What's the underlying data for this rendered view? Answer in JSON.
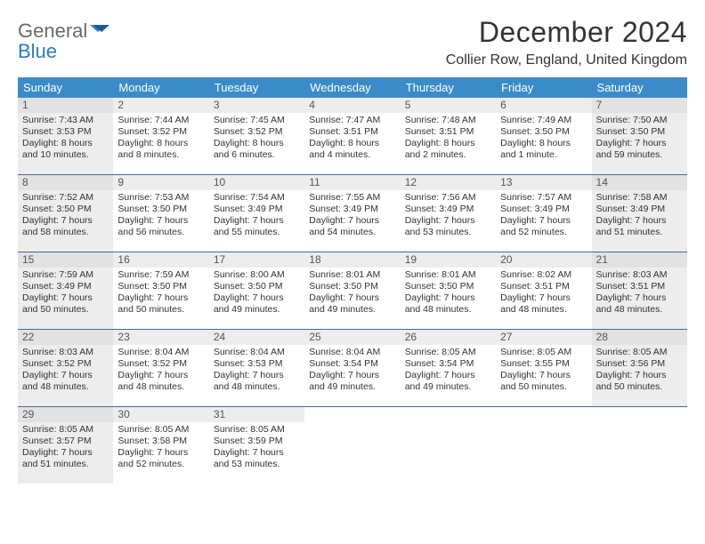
{
  "logo": {
    "general": "General",
    "blue": "Blue"
  },
  "title": "December 2024",
  "location": "Collier Row, England, United Kingdom",
  "colors": {
    "header_bg": "#3b8bc8",
    "week_border": "#3b6d9a",
    "shaded_cell": "#ededed",
    "daynum_bg": "#ededed"
  },
  "dayHeaders": [
    "Sunday",
    "Monday",
    "Tuesday",
    "Wednesday",
    "Thursday",
    "Friday",
    "Saturday"
  ],
  "weeks": [
    [
      {
        "num": "1",
        "shaded": true,
        "sunrise": "Sunrise: 7:43 AM",
        "sunset": "Sunset: 3:53 PM",
        "day1": "Daylight: 8 hours",
        "day2": "and 10 minutes."
      },
      {
        "num": "2",
        "shaded": false,
        "sunrise": "Sunrise: 7:44 AM",
        "sunset": "Sunset: 3:52 PM",
        "day1": "Daylight: 8 hours",
        "day2": "and 8 minutes."
      },
      {
        "num": "3",
        "shaded": false,
        "sunrise": "Sunrise: 7:45 AM",
        "sunset": "Sunset: 3:52 PM",
        "day1": "Daylight: 8 hours",
        "day2": "and 6 minutes."
      },
      {
        "num": "4",
        "shaded": false,
        "sunrise": "Sunrise: 7:47 AM",
        "sunset": "Sunset: 3:51 PM",
        "day1": "Daylight: 8 hours",
        "day2": "and 4 minutes."
      },
      {
        "num": "5",
        "shaded": false,
        "sunrise": "Sunrise: 7:48 AM",
        "sunset": "Sunset: 3:51 PM",
        "day1": "Daylight: 8 hours",
        "day2": "and 2 minutes."
      },
      {
        "num": "6",
        "shaded": false,
        "sunrise": "Sunrise: 7:49 AM",
        "sunset": "Sunset: 3:50 PM",
        "day1": "Daylight: 8 hours",
        "day2": "and 1 minute."
      },
      {
        "num": "7",
        "shaded": true,
        "sunrise": "Sunrise: 7:50 AM",
        "sunset": "Sunset: 3:50 PM",
        "day1": "Daylight: 7 hours",
        "day2": "and 59 minutes."
      }
    ],
    [
      {
        "num": "8",
        "shaded": true,
        "sunrise": "Sunrise: 7:52 AM",
        "sunset": "Sunset: 3:50 PM",
        "day1": "Daylight: 7 hours",
        "day2": "and 58 minutes."
      },
      {
        "num": "9",
        "shaded": false,
        "sunrise": "Sunrise: 7:53 AM",
        "sunset": "Sunset: 3:50 PM",
        "day1": "Daylight: 7 hours",
        "day2": "and 56 minutes."
      },
      {
        "num": "10",
        "shaded": false,
        "sunrise": "Sunrise: 7:54 AM",
        "sunset": "Sunset: 3:49 PM",
        "day1": "Daylight: 7 hours",
        "day2": "and 55 minutes."
      },
      {
        "num": "11",
        "shaded": false,
        "sunrise": "Sunrise: 7:55 AM",
        "sunset": "Sunset: 3:49 PM",
        "day1": "Daylight: 7 hours",
        "day2": "and 54 minutes."
      },
      {
        "num": "12",
        "shaded": false,
        "sunrise": "Sunrise: 7:56 AM",
        "sunset": "Sunset: 3:49 PM",
        "day1": "Daylight: 7 hours",
        "day2": "and 53 minutes."
      },
      {
        "num": "13",
        "shaded": false,
        "sunrise": "Sunrise: 7:57 AM",
        "sunset": "Sunset: 3:49 PM",
        "day1": "Daylight: 7 hours",
        "day2": "and 52 minutes."
      },
      {
        "num": "14",
        "shaded": true,
        "sunrise": "Sunrise: 7:58 AM",
        "sunset": "Sunset: 3:49 PM",
        "day1": "Daylight: 7 hours",
        "day2": "and 51 minutes."
      }
    ],
    [
      {
        "num": "15",
        "shaded": true,
        "sunrise": "Sunrise: 7:59 AM",
        "sunset": "Sunset: 3:49 PM",
        "day1": "Daylight: 7 hours",
        "day2": "and 50 minutes."
      },
      {
        "num": "16",
        "shaded": false,
        "sunrise": "Sunrise: 7:59 AM",
        "sunset": "Sunset: 3:50 PM",
        "day1": "Daylight: 7 hours",
        "day2": "and 50 minutes."
      },
      {
        "num": "17",
        "shaded": false,
        "sunrise": "Sunrise: 8:00 AM",
        "sunset": "Sunset: 3:50 PM",
        "day1": "Daylight: 7 hours",
        "day2": "and 49 minutes."
      },
      {
        "num": "18",
        "shaded": false,
        "sunrise": "Sunrise: 8:01 AM",
        "sunset": "Sunset: 3:50 PM",
        "day1": "Daylight: 7 hours",
        "day2": "and 49 minutes."
      },
      {
        "num": "19",
        "shaded": false,
        "sunrise": "Sunrise: 8:01 AM",
        "sunset": "Sunset: 3:50 PM",
        "day1": "Daylight: 7 hours",
        "day2": "and 48 minutes."
      },
      {
        "num": "20",
        "shaded": false,
        "sunrise": "Sunrise: 8:02 AM",
        "sunset": "Sunset: 3:51 PM",
        "day1": "Daylight: 7 hours",
        "day2": "and 48 minutes."
      },
      {
        "num": "21",
        "shaded": true,
        "sunrise": "Sunrise: 8:03 AM",
        "sunset": "Sunset: 3:51 PM",
        "day1": "Daylight: 7 hours",
        "day2": "and 48 minutes."
      }
    ],
    [
      {
        "num": "22",
        "shaded": true,
        "sunrise": "Sunrise: 8:03 AM",
        "sunset": "Sunset: 3:52 PM",
        "day1": "Daylight: 7 hours",
        "day2": "and 48 minutes."
      },
      {
        "num": "23",
        "shaded": false,
        "sunrise": "Sunrise: 8:04 AM",
        "sunset": "Sunset: 3:52 PM",
        "day1": "Daylight: 7 hours",
        "day2": "and 48 minutes."
      },
      {
        "num": "24",
        "shaded": false,
        "sunrise": "Sunrise: 8:04 AM",
        "sunset": "Sunset: 3:53 PM",
        "day1": "Daylight: 7 hours",
        "day2": "and 48 minutes."
      },
      {
        "num": "25",
        "shaded": false,
        "sunrise": "Sunrise: 8:04 AM",
        "sunset": "Sunset: 3:54 PM",
        "day1": "Daylight: 7 hours",
        "day2": "and 49 minutes."
      },
      {
        "num": "26",
        "shaded": false,
        "sunrise": "Sunrise: 8:05 AM",
        "sunset": "Sunset: 3:54 PM",
        "day1": "Daylight: 7 hours",
        "day2": "and 49 minutes."
      },
      {
        "num": "27",
        "shaded": false,
        "sunrise": "Sunrise: 8:05 AM",
        "sunset": "Sunset: 3:55 PM",
        "day1": "Daylight: 7 hours",
        "day2": "and 50 minutes."
      },
      {
        "num": "28",
        "shaded": true,
        "sunrise": "Sunrise: 8:05 AM",
        "sunset": "Sunset: 3:56 PM",
        "day1": "Daylight: 7 hours",
        "day2": "and 50 minutes."
      }
    ],
    [
      {
        "num": "29",
        "shaded": true,
        "sunrise": "Sunrise: 8:05 AM",
        "sunset": "Sunset: 3:57 PM",
        "day1": "Daylight: 7 hours",
        "day2": "and 51 minutes."
      },
      {
        "num": "30",
        "shaded": false,
        "sunrise": "Sunrise: 8:05 AM",
        "sunset": "Sunset: 3:58 PM",
        "day1": "Daylight: 7 hours",
        "day2": "and 52 minutes."
      },
      {
        "num": "31",
        "shaded": false,
        "sunrise": "Sunrise: 8:05 AM",
        "sunset": "Sunset: 3:59 PM",
        "day1": "Daylight: 7 hours",
        "day2": "and 53 minutes."
      },
      {
        "empty": true
      },
      {
        "empty": true
      },
      {
        "empty": true
      },
      {
        "empty": true
      }
    ]
  ]
}
